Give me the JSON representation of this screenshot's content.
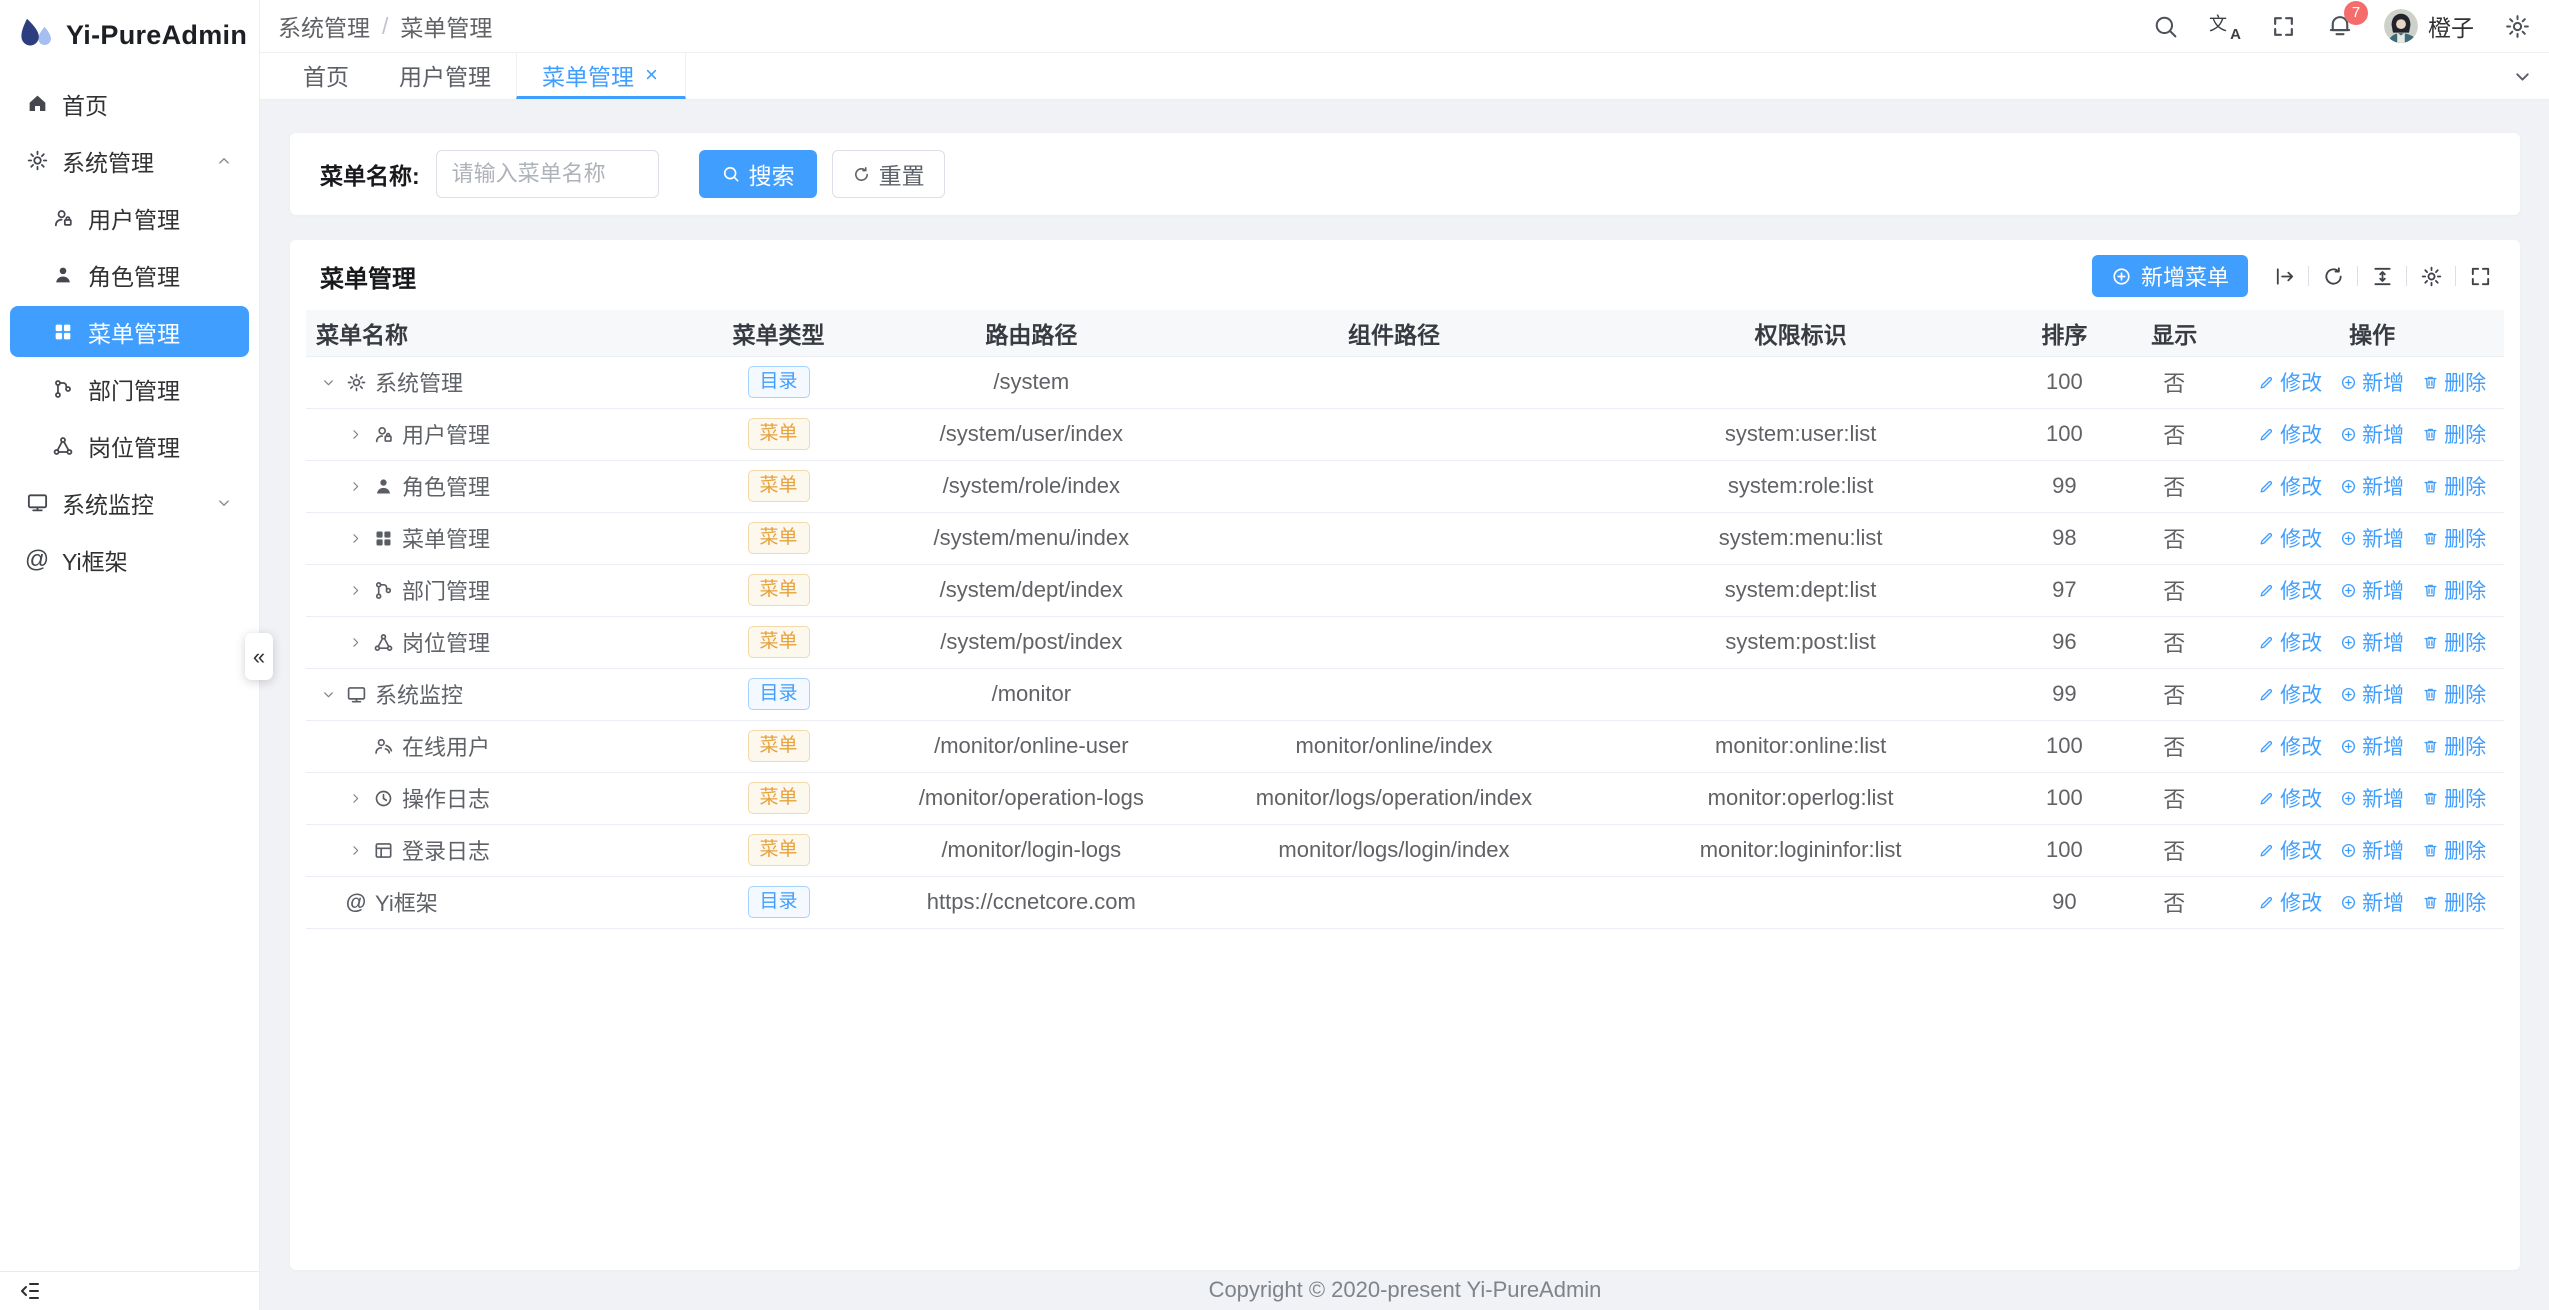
{
  "colors": {
    "primary": "#409eff",
    "badge": "#f56c6c",
    "tag_dir": "#409eff",
    "tag_menu": "#e6a23c"
  },
  "sidebar": {
    "logo_title": "Yi-PureAdmin",
    "items": [
      {
        "label": "首页",
        "icon": "home-icon"
      },
      {
        "label": "系统管理",
        "icon": "gear-icon",
        "expanded": true
      },
      {
        "label": "用户管理",
        "icon": "user-icon"
      },
      {
        "label": "角色管理",
        "icon": "role-icon"
      },
      {
        "label": "菜单管理",
        "icon": "grid-icon",
        "active": true
      },
      {
        "label": "部门管理",
        "icon": "tree-icon"
      },
      {
        "label": "岗位管理",
        "icon": "post-icon"
      },
      {
        "label": "系统监控",
        "icon": "monitor-icon",
        "collapsed": true
      },
      {
        "label": "Yi框架",
        "icon": "at-icon"
      }
    ]
  },
  "navbar": {
    "breadcrumb": {
      "first": "系统管理",
      "separator": "/",
      "last": "菜单管理"
    },
    "notification_count": "7",
    "user_name": "橙子"
  },
  "tabs": {
    "items": [
      {
        "label": "首页"
      },
      {
        "label": "用户管理"
      },
      {
        "label": "菜单管理",
        "active": true,
        "closable": true
      }
    ]
  },
  "search": {
    "label": "菜单名称:",
    "placeholder": "请输入菜单名称",
    "search_label": "搜索",
    "reset_label": "重置"
  },
  "card": {
    "title": "菜单管理",
    "add_label": "新增菜单"
  },
  "table": {
    "columns": [
      "菜单名称",
      "菜单类型",
      "路由路径",
      "组件路径",
      "权限标识",
      "排序",
      "显示",
      "操作"
    ],
    "tag_labels": {
      "dir": "目录",
      "menu": "菜单"
    },
    "action_labels": [
      "修改",
      "新增",
      "删除"
    ],
    "rows": [
      {
        "name": "系统管理",
        "icon": "gear-icon",
        "level": 0,
        "expand": "open",
        "type": "dir",
        "route": "/system",
        "component": "",
        "perms": "",
        "order": "100",
        "visible": "否"
      },
      {
        "name": "用户管理",
        "icon": "user-icon",
        "level": 1,
        "expand": "closed",
        "type": "menu",
        "route": "/system/user/index",
        "component": "",
        "perms": "system:user:list",
        "order": "100",
        "visible": "否"
      },
      {
        "name": "角色管理",
        "icon": "role-icon",
        "level": 1,
        "expand": "closed",
        "type": "menu",
        "route": "/system/role/index",
        "component": "",
        "perms": "system:role:list",
        "order": "99",
        "visible": "否"
      },
      {
        "name": "菜单管理",
        "icon": "grid-icon",
        "level": 1,
        "expand": "closed",
        "type": "menu",
        "route": "/system/menu/index",
        "component": "",
        "perms": "system:menu:list",
        "order": "98",
        "visible": "否"
      },
      {
        "name": "部门管理",
        "icon": "tree-icon",
        "level": 1,
        "expand": "closed",
        "type": "menu",
        "route": "/system/dept/index",
        "component": "",
        "perms": "system:dept:list",
        "order": "97",
        "visible": "否"
      },
      {
        "name": "岗位管理",
        "icon": "post-icon",
        "level": 1,
        "expand": "closed",
        "type": "menu",
        "route": "/system/post/index",
        "component": "",
        "perms": "system:post:list",
        "order": "96",
        "visible": "否"
      },
      {
        "name": "系统监控",
        "icon": "monitor-icon",
        "level": 0,
        "expand": "open",
        "type": "dir",
        "route": "/monitor",
        "component": "",
        "perms": "",
        "order": "99",
        "visible": "否"
      },
      {
        "name": "在线用户",
        "icon": "online-icon",
        "level": 1,
        "expand": "none",
        "type": "menu",
        "route": "/monitor/online-user",
        "component": "monitor/online/index",
        "perms": "monitor:online:list",
        "order": "100",
        "visible": "否"
      },
      {
        "name": "操作日志",
        "icon": "clock-icon",
        "level": 1,
        "expand": "closed",
        "type": "menu",
        "route": "/monitor/operation-logs",
        "component": "monitor/logs/operation/index",
        "perms": "monitor:operlog:list",
        "order": "100",
        "visible": "否"
      },
      {
        "name": "登录日志",
        "icon": "window-icon",
        "level": 1,
        "expand": "closed",
        "type": "menu",
        "route": "/monitor/login-logs",
        "component": "monitor/logs/login/index",
        "perms": "monitor:logininfor:list",
        "order": "100",
        "visible": "否"
      },
      {
        "name": "Yi框架",
        "icon": "at-icon",
        "level": 0,
        "expand": "none",
        "type": "dir",
        "route": "https://ccnetcore.com",
        "component": "",
        "perms": "",
        "order": "90",
        "visible": "否"
      }
    ]
  },
  "footer": {
    "copyright": "Copyright © 2020-present Yi-PureAdmin"
  }
}
